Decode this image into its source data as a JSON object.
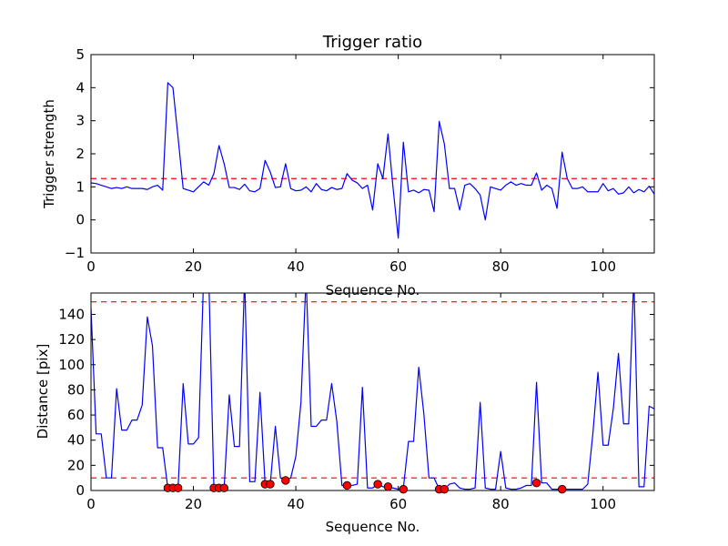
{
  "chart_data": [
    {
      "type": "line",
      "title": "Trigger ratio",
      "xlabel": "Sequence No.",
      "ylabel": "Trigger strength",
      "xlim": [
        0,
        110
      ],
      "ylim": [
        -1,
        5
      ],
      "xticks": [
        "0",
        "20",
        "40",
        "60",
        "80",
        "100"
      ],
      "yticks": [
        "−1",
        "0",
        "1",
        "2",
        "3",
        "4",
        "5"
      ],
      "series": [
        {
          "color": "#0000ff",
          "x": [
            0,
            1,
            2,
            3,
            4,
            5,
            6,
            7,
            8,
            9,
            10,
            11,
            12,
            13,
            14,
            15,
            16,
            17,
            18,
            19,
            20,
            21,
            22,
            23,
            24,
            25,
            26,
            27,
            28,
            29,
            30,
            31,
            32,
            33,
            34,
            35,
            36,
            37,
            38,
            39,
            40,
            41,
            42,
            43,
            44,
            45,
            46,
            47,
            48,
            49,
            50,
            51,
            52,
            53,
            54,
            55,
            56,
            57,
            58,
            59,
            60,
            61,
            62,
            63,
            64,
            65,
            66,
            67,
            68,
            69,
            70,
            71,
            72,
            73,
            74,
            75,
            76,
            77,
            78,
            79,
            80,
            81,
            82,
            83,
            84,
            85,
            86,
            87,
            88,
            89,
            90,
            91,
            92,
            93,
            94,
            95,
            96,
            97,
            98,
            99,
            100,
            101,
            102,
            103,
            104,
            105,
            106,
            107,
            108,
            109,
            110
          ],
          "y": [
            1.12,
            1.1,
            1.05,
            1.0,
            0.95,
            0.98,
            0.95,
            1.0,
            0.95,
            0.95,
            0.95,
            0.92,
            1.0,
            1.05,
            0.9,
            4.15,
            4.0,
            2.5,
            0.95,
            0.9,
            0.85,
            1.0,
            1.15,
            1.05,
            1.4,
            2.25,
            1.7,
            0.98,
            0.98,
            0.92,
            1.08,
            0.88,
            0.85,
            0.95,
            1.8,
            1.45,
            0.98,
            1.0,
            1.7,
            0.95,
            0.88,
            0.9,
            1.0,
            0.85,
            1.1,
            0.92,
            0.88,
            0.98,
            0.92,
            0.95,
            1.4,
            1.2,
            1.12,
            0.95,
            1.05,
            0.3,
            1.7,
            1.25,
            2.6,
            0.95,
            -0.55,
            2.35,
            0.85,
            0.9,
            0.82,
            0.92,
            0.9,
            0.25,
            2.98,
            2.3,
            0.95,
            0.95,
            0.3,
            1.05,
            1.1,
            0.95,
            0.75,
            0.0,
            1.0,
            0.95,
            0.9,
            1.05,
            1.15,
            1.05,
            1.1,
            1.05,
            1.05,
            1.42,
            0.9,
            1.05,
            0.95,
            0.35,
            2.05,
            1.25,
            0.95,
            0.95,
            1.0,
            0.85,
            0.85,
            0.85,
            1.1,
            0.88,
            0.95,
            0.78,
            0.82,
            1.0,
            0.82,
            0.92,
            0.85,
            1.02,
            0.78
          ]
        }
      ],
      "hlines": [
        {
          "y": 1.25,
          "color": "#ff0000",
          "style": "dashed"
        }
      ]
    },
    {
      "type": "line",
      "title": "",
      "xlabel": "Sequence No.",
      "ylabel": "Distance [pix]",
      "xlim": [
        0,
        110
      ],
      "ylim": [
        0,
        157
      ],
      "xticks": [
        "0",
        "20",
        "40",
        "60",
        "80",
        "100"
      ],
      "yticks": [
        "0",
        "20",
        "40",
        "60",
        "80",
        "100",
        "120",
        "140"
      ],
      "series": [
        {
          "color": "#0000ff",
          "x": [
            0,
            1,
            2,
            3,
            4,
            5,
            6,
            7,
            8,
            9,
            10,
            11,
            12,
            13,
            14,
            15,
            16,
            17,
            18,
            19,
            20,
            21,
            22,
            23,
            24,
            25,
            26,
            27,
            28,
            29,
            30,
            31,
            32,
            33,
            34,
            35,
            36,
            37,
            38,
            39,
            40,
            41,
            42,
            43,
            44,
            45,
            46,
            47,
            48,
            49,
            50,
            51,
            52,
            53,
            54,
            55,
            56,
            57,
            58,
            59,
            60,
            61,
            62,
            63,
            64,
            65,
            66,
            67,
            68,
            69,
            70,
            71,
            72,
            73,
            74,
            75,
            76,
            77,
            78,
            79,
            80,
            81,
            82,
            83,
            84,
            85,
            86,
            87,
            88,
            89,
            90,
            91,
            92,
            93,
            94,
            95,
            96,
            97,
            98,
            99,
            100,
            101,
            102,
            103,
            104,
            105,
            106,
            107,
            108,
            109,
            110
          ],
          "y": [
            145,
            45,
            45,
            10,
            10,
            81,
            48,
            48,
            56,
            56,
            68,
            138,
            115,
            34,
            34,
            2,
            2,
            2,
            85,
            37,
            37,
            42,
            170,
            170,
            2,
            2,
            2,
            76,
            35,
            35,
            170,
            7,
            7,
            78,
            5,
            5,
            51,
            10,
            8,
            10,
            27,
            70,
            170,
            51,
            51,
            56,
            56,
            85,
            55,
            4,
            4,
            4,
            5,
            82,
            2,
            2,
            5,
            3,
            2,
            2,
            1,
            2,
            39,
            39,
            98,
            61,
            10,
            10,
            1,
            1,
            5,
            6,
            2,
            1,
            1,
            2,
            70,
            2,
            1,
            1,
            31,
            2,
            1,
            1,
            2,
            4,
            4,
            86,
            6,
            6,
            1,
            1,
            1,
            1,
            1,
            1,
            1,
            5,
            45,
            94,
            36,
            36,
            65,
            109,
            53,
            53,
            170,
            3,
            3,
            67,
            65
          ]
        }
      ],
      "markers": {
        "color": "#ff0000",
        "x": [
          15,
          16,
          17,
          24,
          25,
          26,
          34,
          35,
          38,
          50,
          56,
          58,
          61,
          68,
          69,
          87,
          92
        ],
        "y": [
          2,
          2,
          2,
          2,
          2,
          2,
          5,
          5,
          8,
          4,
          5,
          3,
          1,
          1,
          1,
          6,
          1
        ]
      },
      "hlines": [
        {
          "y": 150,
          "color": "#ff0000",
          "style": "dashed"
        },
        {
          "y": 10,
          "color": "#ff0000",
          "style": "dashed"
        }
      ]
    }
  ]
}
